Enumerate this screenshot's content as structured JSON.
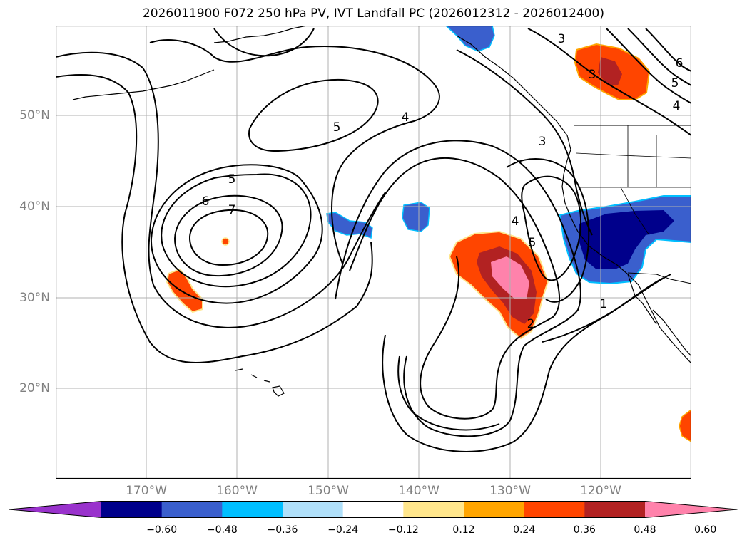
{
  "title": "2026011900 F072 250 hPa PV, IVT Landfall PC (2026012312 - 2026012400)",
  "lat_labels": [
    "50°N",
    "40°N",
    "30°N",
    "20°N"
  ],
  "lon_labels": [
    "170°W",
    "160°W",
    "150°W",
    "140°W",
    "130°W",
    "120°W"
  ],
  "contour_labels": [
    "3",
    "3",
    "6",
    "5",
    "4",
    "5",
    "4",
    "3",
    "5",
    "6",
    "7",
    "4",
    "5",
    "2",
    "1"
  ],
  "colorbar": {
    "ticks": [
      "−0.60",
      "−0.48",
      "−0.36",
      "−0.24",
      "−0.12",
      "0.12",
      "0.24",
      "0.36",
      "0.48",
      "0.60"
    ],
    "colors": [
      "#9932cc",
      "#00008b",
      "#3a5fcd",
      "#00bfff",
      "#b0e0fa",
      "#ffffff",
      "#ffe68c",
      "#ffa500",
      "#ff4500",
      "#b22222",
      "#ff82ab"
    ]
  },
  "colors": {
    "axis": "#000000",
    "grid": "#b0b0b0",
    "label_gray": "#808080"
  }
}
